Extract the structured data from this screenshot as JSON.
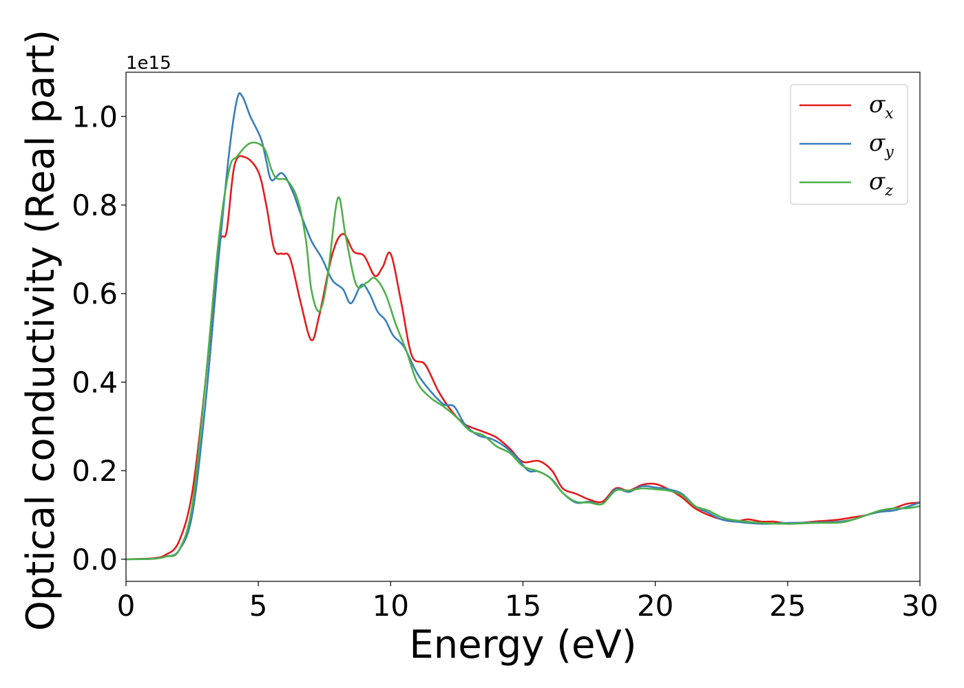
{
  "chart_data": {
    "type": "line",
    "title": "",
    "xlabel": "Energy (eV)",
    "ylabel": "Optical conductivity (Real part)",
    "y_offset_label": "1e15",
    "xlim": [
      0,
      30
    ],
    "ylim": [
      -0.05,
      1.1
    ],
    "xticks": [
      0,
      5,
      10,
      15,
      20,
      25,
      30
    ],
    "xtick_labels": [
      "0",
      "5",
      "10",
      "15",
      "20",
      "25",
      "30"
    ],
    "yticks": [
      0.0,
      0.2,
      0.4,
      0.6,
      0.8,
      1.0
    ],
    "ytick_labels": [
      "0.0",
      "0.2",
      "0.4",
      "0.6",
      "0.8",
      "1.0"
    ],
    "grid": false,
    "legend_position": "top-right",
    "series": [
      {
        "name": "σ_x",
        "legend_symbol": "σ",
        "legend_subscript": "x",
        "color": "#e41a1c",
        "points": [
          [
            0,
            0
          ],
          [
            1,
            0.002
          ],
          [
            1.5,
            0.01
          ],
          [
            2,
            0.04
          ],
          [
            2.5,
            0.15
          ],
          [
            3,
            0.4
          ],
          [
            3.5,
            0.7
          ],
          [
            3.8,
            0.74
          ],
          [
            4.1,
            0.89
          ],
          [
            4.5,
            0.908
          ],
          [
            5,
            0.875
          ],
          [
            5.3,
            0.8
          ],
          [
            5.6,
            0.7
          ],
          [
            5.9,
            0.69
          ],
          [
            6.2,
            0.68
          ],
          [
            6.6,
            0.58
          ],
          [
            7.0,
            0.495
          ],
          [
            7.3,
            0.55
          ],
          [
            7.8,
            0.69
          ],
          [
            8.2,
            0.735
          ],
          [
            8.6,
            0.695
          ],
          [
            9.0,
            0.685
          ],
          [
            9.4,
            0.64
          ],
          [
            9.7,
            0.66
          ],
          [
            10.0,
            0.69
          ],
          [
            10.4,
            0.58
          ],
          [
            10.8,
            0.46
          ],
          [
            11.3,
            0.44
          ],
          [
            11.8,
            0.38
          ],
          [
            12.3,
            0.335
          ],
          [
            12.8,
            0.305
          ],
          [
            13.5,
            0.288
          ],
          [
            14,
            0.275
          ],
          [
            14.5,
            0.25
          ],
          [
            15.0,
            0.22
          ],
          [
            15.6,
            0.222
          ],
          [
            16.1,
            0.2
          ],
          [
            16.5,
            0.16
          ],
          [
            17.0,
            0.148
          ],
          [
            17.5,
            0.135
          ],
          [
            18.0,
            0.13
          ],
          [
            18.5,
            0.16
          ],
          [
            19.0,
            0.155
          ],
          [
            19.5,
            0.168
          ],
          [
            20.0,
            0.17
          ],
          [
            20.5,
            0.158
          ],
          [
            21,
            0.14
          ],
          [
            21.5,
            0.115
          ],
          [
            22,
            0.1
          ],
          [
            22.5,
            0.09
          ],
          [
            23,
            0.085
          ],
          [
            23.5,
            0.09
          ],
          [
            24,
            0.085
          ],
          [
            24.5,
            0.085
          ],
          [
            25,
            0.08
          ],
          [
            25.5,
            0.082
          ],
          [
            26,
            0.085
          ],
          [
            26.5,
            0.087
          ],
          [
            27,
            0.09
          ],
          [
            27.5,
            0.095
          ],
          [
            28,
            0.1
          ],
          [
            28.5,
            0.11
          ],
          [
            29,
            0.115
          ],
          [
            29.5,
            0.125
          ],
          [
            30,
            0.128
          ]
        ]
      },
      {
        "name": "σ_y",
        "legend_symbol": "σ",
        "legend_subscript": "y",
        "color": "#377eb8",
        "points": [
          [
            0,
            0
          ],
          [
            1,
            0.001
          ],
          [
            1.5,
            0.006
          ],
          [
            2,
            0.02
          ],
          [
            2.5,
            0.1
          ],
          [
            3,
            0.35
          ],
          [
            3.5,
            0.68
          ],
          [
            3.9,
            0.92
          ],
          [
            4.2,
            1.04
          ],
          [
            4.4,
            1.045
          ],
          [
            4.7,
            1.0
          ],
          [
            5.1,
            0.95
          ],
          [
            5.3,
            0.9
          ],
          [
            5.5,
            0.856
          ],
          [
            5.9,
            0.872
          ],
          [
            6.3,
            0.83
          ],
          [
            6.6,
            0.78
          ],
          [
            7.0,
            0.72
          ],
          [
            7.4,
            0.68
          ],
          [
            7.8,
            0.63
          ],
          [
            8.2,
            0.61
          ],
          [
            8.5,
            0.578
          ],
          [
            8.9,
            0.62
          ],
          [
            9.2,
            0.6
          ],
          [
            9.5,
            0.56
          ],
          [
            9.8,
            0.54
          ],
          [
            10.1,
            0.505
          ],
          [
            10.5,
            0.48
          ],
          [
            11,
            0.42
          ],
          [
            11.5,
            0.38
          ],
          [
            12,
            0.35
          ],
          [
            12.4,
            0.345
          ],
          [
            12.8,
            0.305
          ],
          [
            13.3,
            0.28
          ],
          [
            13.8,
            0.272
          ],
          [
            14.3,
            0.255
          ],
          [
            14.8,
            0.228
          ],
          [
            15.2,
            0.2
          ],
          [
            15.6,
            0.198
          ],
          [
            16.1,
            0.18
          ],
          [
            16.5,
            0.15
          ],
          [
            17.0,
            0.128
          ],
          [
            17.5,
            0.13
          ],
          [
            18.0,
            0.125
          ],
          [
            18.5,
            0.158
          ],
          [
            19.0,
            0.152
          ],
          [
            19.5,
            0.165
          ],
          [
            20.0,
            0.162
          ],
          [
            20.5,
            0.158
          ],
          [
            21,
            0.148
          ],
          [
            21.5,
            0.12
          ],
          [
            22,
            0.105
          ],
          [
            22.5,
            0.09
          ],
          [
            23,
            0.085
          ],
          [
            24,
            0.08
          ],
          [
            25,
            0.082
          ],
          [
            26,
            0.083
          ],
          [
            27,
            0.085
          ],
          [
            27.5,
            0.09
          ],
          [
            28,
            0.1
          ],
          [
            28.5,
            0.107
          ],
          [
            29,
            0.11
          ],
          [
            29.5,
            0.118
          ],
          [
            30,
            0.128
          ]
        ]
      },
      {
        "name": "σ_z",
        "legend_symbol": "σ",
        "legend_subscript": "z",
        "color": "#4daf4a",
        "points": [
          [
            0,
            0
          ],
          [
            1,
            0.001
          ],
          [
            1.5,
            0.006
          ],
          [
            2,
            0.02
          ],
          [
            2.5,
            0.12
          ],
          [
            3,
            0.4
          ],
          [
            3.5,
            0.72
          ],
          [
            3.9,
            0.88
          ],
          [
            4.2,
            0.91
          ],
          [
            4.7,
            0.94
          ],
          [
            5.2,
            0.93
          ],
          [
            5.5,
            0.88
          ],
          [
            5.7,
            0.86
          ],
          [
            6.1,
            0.855
          ],
          [
            6.5,
            0.81
          ],
          [
            6.8,
            0.72
          ],
          [
            7.0,
            0.61
          ],
          [
            7.3,
            0.56
          ],
          [
            7.6,
            0.63
          ],
          [
            8.0,
            0.815
          ],
          [
            8.3,
            0.73
          ],
          [
            8.7,
            0.62
          ],
          [
            9.1,
            0.625
          ],
          [
            9.4,
            0.635
          ],
          [
            9.8,
            0.6
          ],
          [
            10.2,
            0.53
          ],
          [
            10.6,
            0.47
          ],
          [
            11,
            0.4
          ],
          [
            11.5,
            0.365
          ],
          [
            12,
            0.345
          ],
          [
            12.5,
            0.32
          ],
          [
            13,
            0.29
          ],
          [
            13.5,
            0.28
          ],
          [
            14,
            0.255
          ],
          [
            14.5,
            0.24
          ],
          [
            15,
            0.21
          ],
          [
            15.5,
            0.2
          ],
          [
            16,
            0.185
          ],
          [
            16.5,
            0.15
          ],
          [
            17,
            0.13
          ],
          [
            17.5,
            0.128
          ],
          [
            18.0,
            0.125
          ],
          [
            18.5,
            0.155
          ],
          [
            19,
            0.155
          ],
          [
            19.5,
            0.16
          ],
          [
            20,
            0.158
          ],
          [
            20.5,
            0.155
          ],
          [
            21,
            0.145
          ],
          [
            21.5,
            0.12
          ],
          [
            22,
            0.11
          ],
          [
            22.5,
            0.095
          ],
          [
            23,
            0.088
          ],
          [
            24,
            0.082
          ],
          [
            25,
            0.08
          ],
          [
            26,
            0.082
          ],
          [
            27,
            0.083
          ],
          [
            27.5,
            0.09
          ],
          [
            28,
            0.1
          ],
          [
            28.5,
            0.11
          ],
          [
            29,
            0.115
          ],
          [
            29.5,
            0.115
          ],
          [
            30,
            0.12
          ]
        ]
      }
    ]
  }
}
